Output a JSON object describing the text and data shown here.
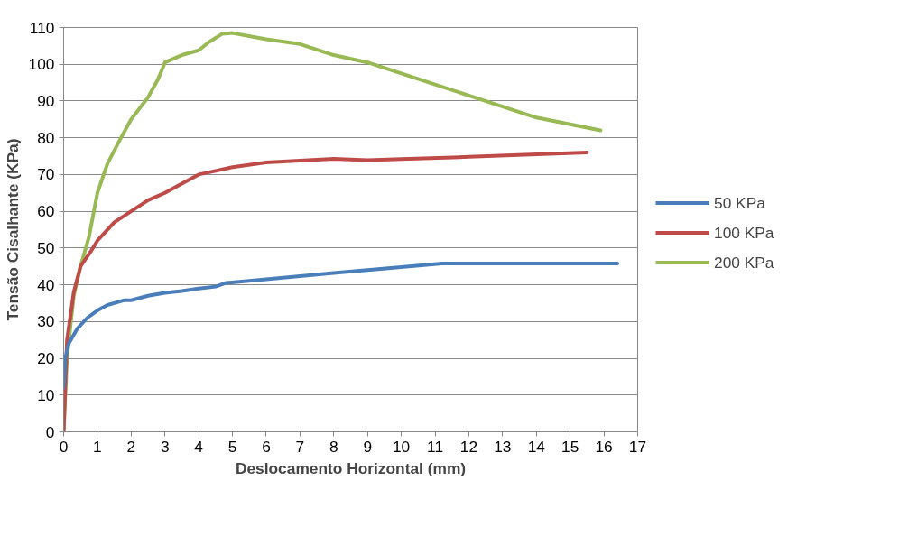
{
  "chart_data": {
    "type": "line",
    "xlabel": "Deslocamento Horizontal (mm)",
    "ylabel": "Tensão Cisalhante (KPa)",
    "xlim": [
      0,
      17
    ],
    "xticks": [
      0,
      1,
      2,
      3,
      4,
      5,
      6,
      7,
      8,
      9,
      10,
      11,
      12,
      13,
      14,
      15,
      16,
      17
    ],
    "ylim": [
      0,
      110
    ],
    "yticks": [
      0,
      10,
      20,
      30,
      40,
      50,
      60,
      70,
      80,
      90,
      100,
      110
    ],
    "grid": "y",
    "legend": "right",
    "marker": "none",
    "line_style": "solid",
    "series": [
      {
        "name": "50 KPa",
        "color": "#4a7ebb",
        "x": [
          0,
          0.05,
          0.15,
          0.4,
          0.7,
          1,
          1.3,
          1.8,
          2,
          2.5,
          3,
          3.5,
          4,
          4.5,
          4.8,
          6,
          8,
          10,
          11.2,
          16.4
        ],
        "values": [
          12,
          20,
          24,
          28,
          31,
          33,
          34.5,
          35.8,
          35.8,
          37,
          37.8,
          38.3,
          39,
          39.5,
          40.5,
          41.5,
          43.2,
          44.8,
          45.8,
          45.8
        ]
      },
      {
        "name": "100 KPa",
        "color": "#be4b48",
        "x": [
          0,
          0.1,
          0.3,
          0.5,
          0.8,
          1,
          1.5,
          2,
          2.5,
          3,
          3.5,
          4,
          4.5,
          5,
          6,
          7,
          8,
          9,
          10,
          12,
          15.5
        ],
        "values": [
          0,
          25,
          38,
          45,
          49,
          52,
          57,
          60,
          63,
          65,
          67.5,
          70,
          71,
          72,
          73.3,
          73.8,
          74.3,
          73.9,
          74.2,
          74.8,
          76
        ]
      },
      {
        "name": "200 KPa",
        "color": "#98b954",
        "x": [
          0,
          0.1,
          0.3,
          0.5,
          0.75,
          1,
          1.3,
          1.7,
          2,
          2.5,
          2.8,
          3,
          3.5,
          4,
          4.3,
          4.7,
          5,
          6,
          7,
          8,
          9,
          10,
          11,
          12,
          13,
          14,
          15.9
        ],
        "values": [
          0,
          20,
          37,
          45,
          53,
          65,
          73,
          80,
          85,
          91,
          96,
          100.5,
          102.5,
          103.8,
          106,
          108.3,
          108.5,
          106.8,
          105.5,
          102.5,
          100.5,
          97.5,
          94.5,
          91.5,
          88.5,
          85.5,
          82
        ]
      }
    ]
  }
}
